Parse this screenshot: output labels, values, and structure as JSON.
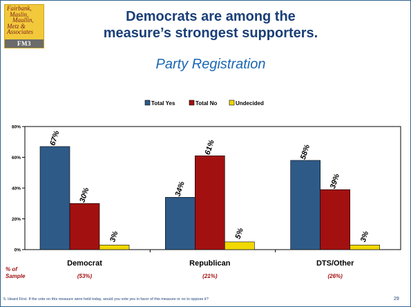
{
  "logo": {
    "lines": [
      "Fairbank,",
      "Maslin,",
      "Maullin,",
      "Metz &",
      "Associates"
    ],
    "abbr": "FM3"
  },
  "slide": {
    "title_line1": "Democrats are among the",
    "title_line2": "measure’s strongest supporters.",
    "subtitle": "Party Registration",
    "footnote": "5. Heard First. If the vote on this measure were held today, would you vote yes in favor of this measure or no to oppose it?",
    "page_number": "29",
    "sample_label_line1": "% of",
    "sample_label_line2": "Sample"
  },
  "chart_data": {
    "type": "bar",
    "title": "",
    "categories": [
      "Democrat",
      "Republican",
      "DTS/Other"
    ],
    "category_samples": [
      "(53%)",
      "(21%)",
      "(26%)"
    ],
    "series": [
      {
        "name": "Total Yes",
        "color": "#2e5a88",
        "values": [
          67,
          34,
          58
        ],
        "labels": [
          "67%",
          "34%",
          "58%"
        ]
      },
      {
        "name": "Total No",
        "color": "#a31010",
        "values": [
          30,
          61,
          39
        ],
        "labels": [
          "30%",
          "61%",
          "39%"
        ]
      },
      {
        "name": "Undecided",
        "color": "#f0d800",
        "values": [
          3,
          5,
          3
        ],
        "labels": [
          "3%",
          "5%",
          "3%"
        ]
      }
    ],
    "ylim": [
      0,
      80
    ],
    "yticks": [
      0,
      20,
      40,
      60,
      80
    ],
    "ytick_labels": [
      "0%",
      "20%",
      "40%",
      "60%",
      "80%"
    ],
    "legend_position": "top-center",
    "grid": false
  }
}
